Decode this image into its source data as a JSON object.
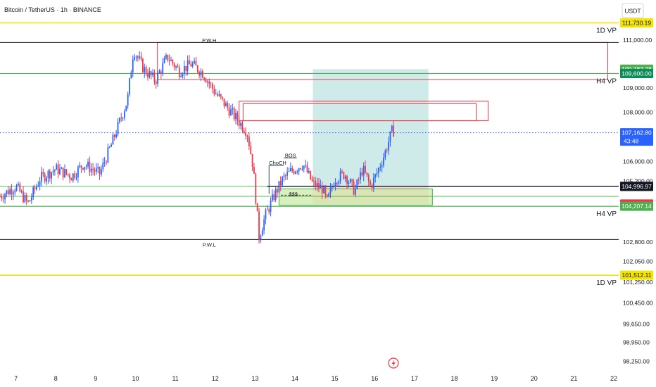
{
  "header": {
    "title": "Bitcoin / TetherUS · 1h · BINANCE"
  },
  "currency_button": {
    "label": "USDT",
    "icon": "currency-selector"
  },
  "colors": {
    "up": "#2962ff",
    "down": "#f23645",
    "vp": "#f5e400",
    "level_green": "#4caf50",
    "level_black": "#131722",
    "zone_red": "#f23645",
    "target_zone": "#b2dfdb",
    "stop_zone": "#ffcdd2",
    "fvg_zone": "#cfe8a8",
    "current_price": "#2962ff"
  },
  "chart_data": {
    "type": "candlestick",
    "symbol": "Bitcoin / TetherUS",
    "interval": "1h",
    "exchange": "BINANCE",
    "y_scale": "log",
    "ylim": [
      98000,
      112500
    ],
    "xlim": [
      6.6,
      22.0
    ],
    "x_ticks": [
      "7",
      "8",
      "9",
      "10",
      "11",
      "12",
      "13",
      "14",
      "15",
      "16",
      "17",
      "18",
      "19",
      "20",
      "21",
      "22"
    ],
    "y_ticks": [
      "111,000.00",
      "109,000.00",
      "108,000.00",
      "106,000.00",
      "105,200.00",
      "102,800.00",
      "102,050.00",
      "101,250.00",
      "100,450.00",
      "99,650.00",
      "98,950.00",
      "98,250.00"
    ],
    "key_points": [
      [
        6.6,
        104600
      ],
      [
        7.0,
        105000
      ],
      [
        7.3,
        104300
      ],
      [
        7.6,
        105300
      ],
      [
        8.0,
        105700
      ],
      [
        8.4,
        105400
      ],
      [
        8.7,
        105900
      ],
      [
        9.1,
        105500
      ],
      [
        9.4,
        106700
      ],
      [
        9.8,
        108500
      ],
      [
        9.95,
        110600
      ],
      [
        10.2,
        109800
      ],
      [
        10.5,
        109300
      ],
      [
        10.8,
        110300
      ],
      [
        11.1,
        109700
      ],
      [
        11.4,
        110000
      ],
      [
        11.7,
        109600
      ],
      [
        12.0,
        108800
      ],
      [
        12.4,
        108000
      ],
      [
        12.8,
        107200
      ],
      [
        12.95,
        105800
      ],
      [
        13.1,
        103000
      ],
      [
        13.25,
        103800
      ],
      [
        13.5,
        104700
      ],
      [
        13.7,
        105300
      ],
      [
        13.9,
        105600
      ],
      [
        14.2,
        105900
      ],
      [
        14.45,
        105100
      ],
      [
        14.7,
        104900
      ],
      [
        14.8,
        104350
      ],
      [
        15.0,
        105300
      ],
      [
        15.25,
        105500
      ],
      [
        15.5,
        104800
      ],
      [
        15.7,
        105700
      ],
      [
        15.9,
        105000
      ],
      [
        16.05,
        105500
      ],
      [
        16.25,
        106300
      ],
      [
        16.45,
        107300
      ],
      [
        16.5,
        107160
      ]
    ],
    "current_price": {
      "value": 107162.8,
      "label": "107,162.80",
      "countdown": "43:48"
    },
    "levels": [
      {
        "name": "1D VP",
        "price": 111730.19,
        "label": "111,730.19",
        "kind": "vp"
      },
      {
        "name": "1D VP",
        "price": 101512.11,
        "label": "101,512.11",
        "kind": "vp"
      },
      {
        "name": "P.W.H",
        "price": 110900,
        "kind": "black"
      },
      {
        "name": "P.W.L",
        "price": 102900,
        "kind": "black"
      },
      {
        "name": "H4 VP",
        "price": 109600.0,
        "label": "109,600.00",
        "kind": "green"
      },
      {
        "name": "H4 VP",
        "price": 104207.14,
        "label": "104,207.14",
        "kind": "green"
      },
      {
        "price": 104996.97,
        "label": "104,996.97",
        "kind": "green_thin"
      },
      {
        "price": 104600,
        "kind": "green_thin"
      }
    ],
    "position": {
      "entry": 105000.0,
      "entry_label": "105,000.00",
      "target": 109782.78,
      "target_label": "109,782.78",
      "stop": 104300.0,
      "stop_label": "104,300.00",
      "x_start": 14.45,
      "x_end": 17.35
    },
    "zones": [
      {
        "kind": "supply",
        "x_start": 10.55,
        "x_end": 21.85,
        "y_low": 109350,
        "y_high": 110900
      },
      {
        "kind": "supply",
        "x_start": 12.6,
        "x_end": 18.85,
        "y_low": 107650,
        "y_high": 108450
      },
      {
        "kind": "supply_inner",
        "x_start": 12.7,
        "x_end": 18.55,
        "y_low": 107650,
        "y_high": 108350
      },
      {
        "kind": "fvg",
        "x_start": 13.6,
        "x_end": 17.45,
        "y_low": 104250,
        "y_high": 104900
      }
    ],
    "annotations": [
      {
        "text": "ChoCH",
        "x": 13.35,
        "price": 105950
      },
      {
        "text": "BOS",
        "x": 13.75,
        "price": 106250
      },
      {
        "text": "$$$",
        "x": 13.85,
        "price": 104700
      },
      {
        "text": "P.W.H",
        "x": 11.85,
        "price": 111000
      },
      {
        "text": "P.W.L",
        "x": 11.85,
        "price": 102700
      }
    ]
  }
}
